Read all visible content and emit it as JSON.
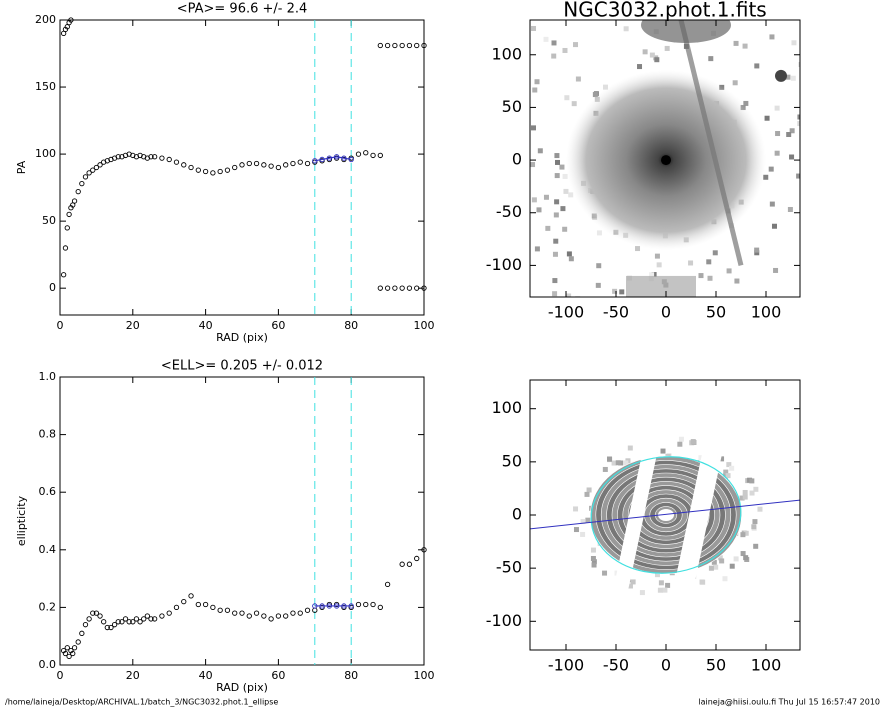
{
  "chart_data": [
    {
      "type": "scatter",
      "title": "<PA>=  96.6 +/-   2.4",
      "xlabel": "RAD (pix)",
      "ylabel": "PA",
      "xlim": [
        0,
        100
      ],
      "xticks": [
        0,
        20,
        40,
        60,
        80,
        100
      ],
      "ylim": [
        -20,
        200
      ],
      "yticks": [
        0,
        50,
        100,
        150,
        200
      ],
      "vlines": [
        70,
        80
      ],
      "vline_color": "#40e0e0",
      "series": [
        {
          "color": "#000000",
          "x": [
            1,
            1.5,
            2,
            2.5,
            3,
            3.5,
            4,
            5,
            6,
            7,
            8,
            9,
            10,
            11,
            12,
            13,
            14,
            15,
            16,
            17,
            18,
            19,
            20,
            21,
            22,
            23,
            24,
            25,
            26,
            28,
            30,
            32,
            34,
            36,
            38,
            40,
            42,
            44,
            46,
            48,
            50,
            52,
            54,
            56,
            58,
            60,
            62,
            64,
            66,
            68,
            70,
            72,
            74,
            76,
            78,
            80,
            82,
            84,
            86,
            88
          ],
          "values": [
            10,
            30,
            45,
            55,
            60,
            62,
            65,
            72,
            78,
            83,
            86,
            88,
            90,
            92,
            94,
            95,
            96,
            97,
            98,
            98,
            99,
            100,
            99,
            98,
            99,
            98,
            97,
            98,
            98,
            97,
            96,
            94,
            92,
            90,
            88,
            87,
            86,
            87,
            88,
            90,
            92,
            93,
            93,
            92,
            91,
            90,
            92,
            93,
            94,
            93,
            94,
            95,
            96,
            97,
            96,
            97,
            100,
            101,
            99,
            99
          ]
        },
        {
          "color": "#000000",
          "x": [
            1,
            1.5,
            2,
            2.5,
            3
          ],
          "values": [
            190,
            193,
            195,
            198,
            200
          ]
        },
        {
          "color": "#000000",
          "x": [
            88,
            90,
            92,
            94,
            96,
            98,
            100
          ],
          "values": [
            181,
            181,
            181,
            181,
            181,
            181,
            181
          ]
        },
        {
          "color": "#000000",
          "x": [
            88,
            90,
            92,
            94,
            96,
            98,
            100
          ],
          "values": [
            0,
            0,
            0,
            0,
            0,
            0,
            0
          ]
        },
        {
          "color": "#3030c0",
          "line": true,
          "x": [
            70,
            72,
            74,
            76,
            78,
            80
          ],
          "values": [
            95,
            96,
            97,
            98,
            97,
            96
          ]
        }
      ]
    },
    {
      "type": "scatter",
      "title": "<ELL>= 0.205 +/-  0.012",
      "xlabel": "RAD (pix)",
      "ylabel": "ellipticity",
      "xlim": [
        0,
        100
      ],
      "xticks": [
        0,
        20,
        40,
        60,
        80,
        100
      ],
      "ylim": [
        0,
        1
      ],
      "yticks": [
        {
          "value": 0,
          "label": "0.0"
        },
        {
          "value": 0.2,
          "label": "0.2"
        },
        {
          "value": 0.4,
          "label": "0.4"
        },
        {
          "value": 0.6,
          "label": "0.6"
        },
        {
          "value": 0.8,
          "label": "0.8"
        },
        {
          "value": 1,
          "label": "1.0"
        }
      ],
      "vlines": [
        70,
        80
      ],
      "vline_color": "#40e0e0",
      "series": [
        {
          "color": "#000000",
          "x": [
            1,
            1.5,
            2,
            2.5,
            3,
            3.5,
            4,
            5,
            6,
            7,
            8,
            9,
            10,
            11,
            12,
            13,
            14,
            15,
            16,
            17,
            18,
            19,
            20,
            21,
            22,
            23,
            24,
            25,
            26,
            28,
            30,
            32,
            34,
            36,
            38,
            40,
            42,
            44,
            46,
            48,
            50,
            52,
            54,
            56,
            58,
            60,
            62,
            64,
            66,
            68,
            70,
            72,
            74,
            76,
            78,
            80,
            82,
            84,
            86,
            88
          ],
          "values": [
            0.05,
            0.04,
            0.06,
            0.03,
            0.05,
            0.04,
            0.06,
            0.08,
            0.11,
            0.14,
            0.16,
            0.18,
            0.18,
            0.17,
            0.15,
            0.13,
            0.13,
            0.14,
            0.15,
            0.15,
            0.16,
            0.15,
            0.15,
            0.16,
            0.15,
            0.16,
            0.17,
            0.16,
            0.16,
            0.17,
            0.18,
            0.2,
            0.22,
            0.24,
            0.21,
            0.21,
            0.2,
            0.19,
            0.19,
            0.18,
            0.18,
            0.17,
            0.18,
            0.17,
            0.16,
            0.17,
            0.17,
            0.18,
            0.18,
            0.19,
            0.19,
            0.2,
            0.21,
            0.21,
            0.2,
            0.2,
            0.21,
            0.21,
            0.21,
            0.2
          ]
        },
        {
          "color": "#000000",
          "x": [
            90,
            94,
            96,
            98,
            100
          ],
          "values": [
            0.28,
            0.35,
            0.35,
            0.37,
            0.4
          ]
        },
        {
          "color": "#3030c0",
          "line": true,
          "x": [
            70,
            72,
            74,
            76,
            78,
            80
          ],
          "values": [
            0.205,
            0.205,
            0.205,
            0.205,
            0.205,
            0.205
          ]
        }
      ]
    },
    {
      "type": "image",
      "title": "NGC3032.phot.1.fits",
      "xlim": [
        -136,
        134
      ],
      "xticks": [
        -100,
        -50,
        0,
        50,
        100
      ],
      "ylim": [
        -130,
        133
      ],
      "yticks": [
        -100,
        -50,
        0,
        50,
        100
      ]
    },
    {
      "type": "mask",
      "xlim": [
        -136,
        134
      ],
      "xticks": [
        -100,
        -50,
        0,
        50,
        100
      ],
      "ylim": [
        -127,
        127
      ],
      "yticks": [
        -100,
        -50,
        0,
        50,
        100
      ]
    }
  ],
  "footer": {
    "path": "/home/laineja/Desktop/ARCHIVAL.1/batch_3/NGC3032.phot.1_ellipse",
    "stamp": "laineja@hiisi.oulu.fi  Thu Jul 15 16:57:47 2010"
  }
}
